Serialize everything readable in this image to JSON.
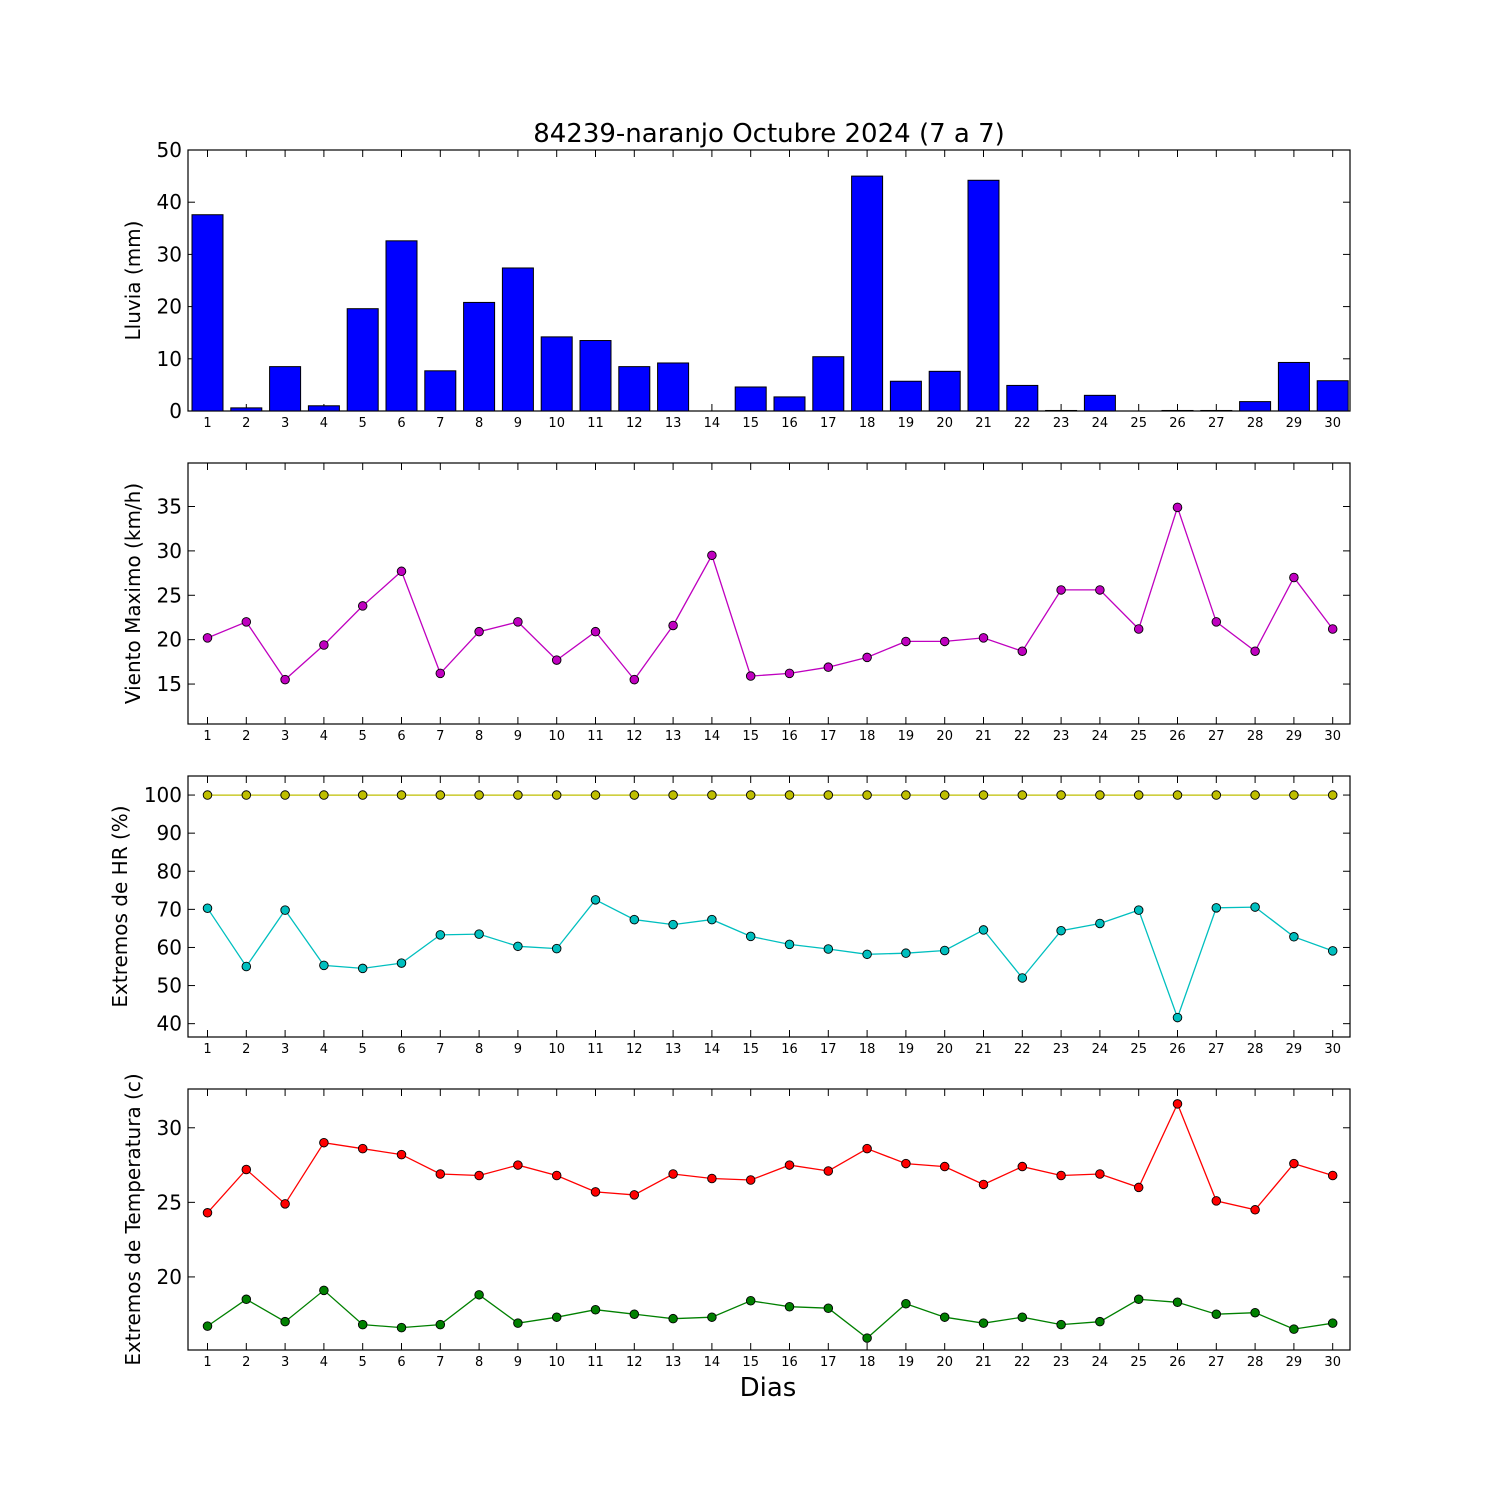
{
  "title": "84239-naranjo Octubre 2024  (7 a 7)",
  "xlabel": "Dias",
  "chart_data": [
    {
      "type": "bar",
      "ylabel": "Lluvia (mm)",
      "ylim": [
        0,
        50
      ],
      "yticks": [
        0,
        10,
        20,
        30,
        40,
        50
      ],
      "categories": [
        "1",
        "2",
        "3",
        "4",
        "5",
        "6",
        "7",
        "8",
        "9",
        "10",
        "11",
        "12",
        "13",
        "14",
        "15",
        "16",
        "17",
        "18",
        "19",
        "20",
        "21",
        "22",
        "23",
        "24",
        "25",
        "26",
        "27",
        "28",
        "29",
        "30"
      ],
      "grid": false,
      "series": [
        {
          "color": "#0000ff",
          "values": [
            37.6,
            0.6,
            8.5,
            1.0,
            19.6,
            32.6,
            7.7,
            20.8,
            27.4,
            14.2,
            13.5,
            8.5,
            9.2,
            0,
            4.6,
            2.7,
            10.4,
            45.0,
            5.7,
            7.6,
            44.2,
            4.9,
            0.1,
            3.0,
            0,
            0.1,
            0.1,
            1.8,
            9.3,
            5.8
          ]
        }
      ]
    },
    {
      "type": "line",
      "ylabel": "Viento Maximo (km/h)",
      "ylim": [
        10.5,
        39.9
      ],
      "yticks": [
        15,
        20,
        25,
        30,
        35
      ],
      "x": [
        1,
        2,
        3,
        4,
        5,
        6,
        7,
        8,
        9,
        10,
        11,
        12,
        13,
        14,
        15,
        16,
        17,
        18,
        19,
        20,
        21,
        22,
        23,
        24,
        25,
        26,
        27,
        28,
        29,
        30
      ],
      "grid": false,
      "series": [
        {
          "color": "#bf00bf",
          "values": [
            20.2,
            22.0,
            15.5,
            19.4,
            23.8,
            27.7,
            16.2,
            20.9,
            22.0,
            17.7,
            20.9,
            15.5,
            21.6,
            29.5,
            15.9,
            16.2,
            16.9,
            18.0,
            19.8,
            19.8,
            20.2,
            18.7,
            25.6,
            25.6,
            21.2,
            34.9,
            22.0,
            18.7,
            27.0,
            21.2
          ]
        }
      ]
    },
    {
      "type": "line",
      "ylabel": "Extremos de HR (%)",
      "ylim": [
        36.5,
        105
      ],
      "yticks": [
        40,
        50,
        60,
        70,
        80,
        90,
        100
      ],
      "x": [
        1,
        2,
        3,
        4,
        5,
        6,
        7,
        8,
        9,
        10,
        11,
        12,
        13,
        14,
        15,
        16,
        17,
        18,
        19,
        20,
        21,
        22,
        23,
        24,
        25,
        26,
        27,
        28,
        29,
        30
      ],
      "grid": false,
      "series": [
        {
          "color": "#bfbf00",
          "values": [
            100,
            100,
            100,
            100,
            100,
            100,
            100,
            100,
            100,
            100,
            100,
            100,
            100,
            100,
            100,
            100,
            100,
            100,
            100,
            100,
            100,
            100,
            100,
            100,
            100,
            100,
            100,
            100,
            100,
            100
          ]
        },
        {
          "color": "#00bfbf",
          "values": [
            70.3,
            55.0,
            69.8,
            55.3,
            54.5,
            55.9,
            63.3,
            63.5,
            60.3,
            59.7,
            72.5,
            67.3,
            66.0,
            67.3,
            62.9,
            60.8,
            59.6,
            58.2,
            58.5,
            59.2,
            64.6,
            52.0,
            64.4,
            66.3,
            69.8,
            41.6,
            70.4,
            70.6,
            62.8,
            59.1
          ]
        }
      ]
    },
    {
      "type": "line",
      "ylabel": "Extremos de Temperatura (c)",
      "ylim": [
        15.1,
        32.6
      ],
      "yticks": [
        20,
        25,
        30
      ],
      "x": [
        1,
        2,
        3,
        4,
        5,
        6,
        7,
        8,
        9,
        10,
        11,
        12,
        13,
        14,
        15,
        16,
        17,
        18,
        19,
        20,
        21,
        22,
        23,
        24,
        25,
        26,
        27,
        28,
        29,
        30
      ],
      "grid": false,
      "series": [
        {
          "color": "#ff0000",
          "values": [
            24.3,
            27.2,
            24.9,
            29.0,
            28.6,
            28.2,
            26.9,
            26.8,
            27.5,
            26.8,
            25.7,
            25.5,
            26.9,
            26.6,
            26.5,
            27.5,
            27.1,
            28.6,
            27.6,
            27.4,
            26.2,
            27.4,
            26.8,
            26.9,
            26.0,
            31.6,
            25.1,
            24.5,
            27.6,
            26.8
          ]
        },
        {
          "color": "#008000",
          "values": [
            16.7,
            18.5,
            17.0,
            19.1,
            16.8,
            16.6,
            16.8,
            18.8,
            16.9,
            17.3,
            17.8,
            17.5,
            17.2,
            17.3,
            18.4,
            18.0,
            17.9,
            15.9,
            18.2,
            17.3,
            16.9,
            17.3,
            16.8,
            17.0,
            18.5,
            18.3,
            17.5,
            17.6,
            16.5,
            16.9
          ]
        }
      ]
    }
  ]
}
